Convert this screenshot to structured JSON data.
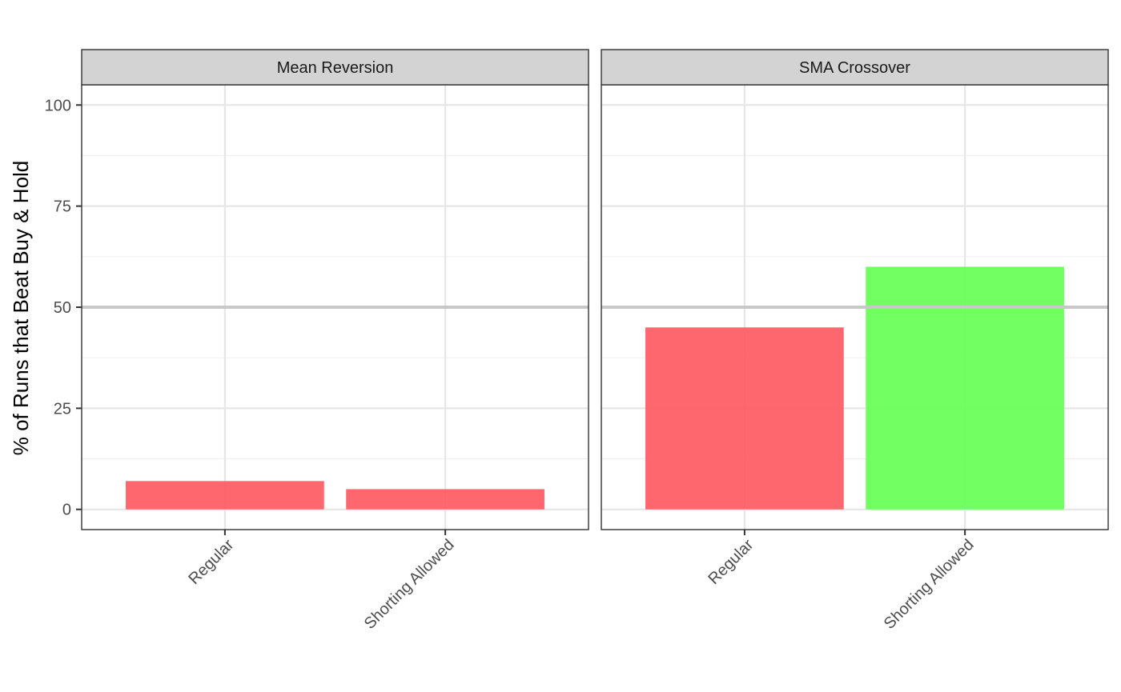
{
  "chart_data": {
    "type": "bar",
    "ylabel": "% of Runs that Beat Buy & Hold",
    "xlabel": "",
    "ylim": [
      -5,
      105
    ],
    "y_ticks": [
      0,
      25,
      50,
      75,
      100
    ],
    "y_minor": [
      12.5,
      37.5,
      62.5,
      87.5
    ],
    "reference_line": 50,
    "categories": [
      "Regular",
      "Shorting Allowed"
    ],
    "colors": {
      "below": "#ff5a63",
      "above": "#66ff55"
    },
    "grid": true,
    "facets": [
      {
        "title": "Mean Reversion",
        "values": [
          7,
          5
        ],
        "fill": [
          "below",
          "below"
        ]
      },
      {
        "title": "SMA Crossover",
        "values": [
          45,
          60
        ],
        "fill": [
          "below",
          "above"
        ]
      }
    ]
  }
}
